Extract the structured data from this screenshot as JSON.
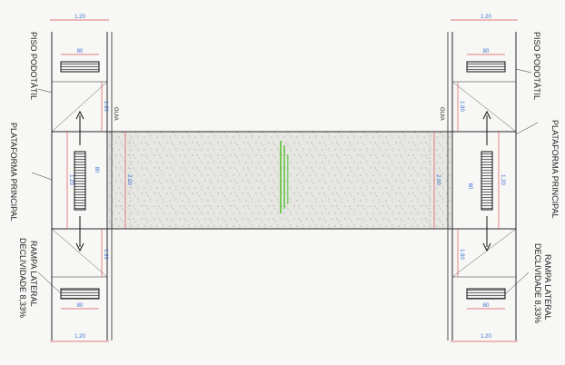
{
  "drawing": {
    "colors": {
      "line": "#2a2a2a",
      "dimension": "#e05252",
      "dimension_text": "#3a6ed1",
      "crosswalk_fill": "#e6e7e3",
      "center_text": "#5ec23a",
      "background": "#f7f7f5"
    },
    "left": {
      "label_piso": "PISO PODOTÁTIL",
      "label_plataforma": "PLATAFORMA PRINCIPAL",
      "label_rampa": "RAMPA LATERAL",
      "label_declividade": "DECLIVIDADE 8,33%",
      "guia": "GUIA",
      "dim_width_top": "1.20",
      "dim_width_bottom": "1.20",
      "dim_tile_top": "80",
      "dim_tile_bottom": "80",
      "dim_ramp_top": "1.90",
      "dim_ramp_bottom": "1.90",
      "dim_platform": "1.20",
      "dim_platform_inner": "80",
      "dim_crosswalk": "2.00"
    },
    "right": {
      "label_piso": "PISO PODOTÁTIL",
      "label_plataforma": "PLATAFORMA PRINCIPAL",
      "label_rampa": "RAMPA LATERAL",
      "label_declividade": "DECLIVIDADE 8,33%",
      "guia": "GUIA",
      "dim_width_top": "1.20",
      "dim_width_bottom": "1.20",
      "dim_tile_top": "80",
      "dim_tile_bottom": "80",
      "dim_ramp_top": "1.90",
      "dim_ramp_bottom": "1.90",
      "dim_platform": "1.20",
      "dim_platform_inner": "80",
      "dim_crosswalk": "2.00"
    }
  }
}
